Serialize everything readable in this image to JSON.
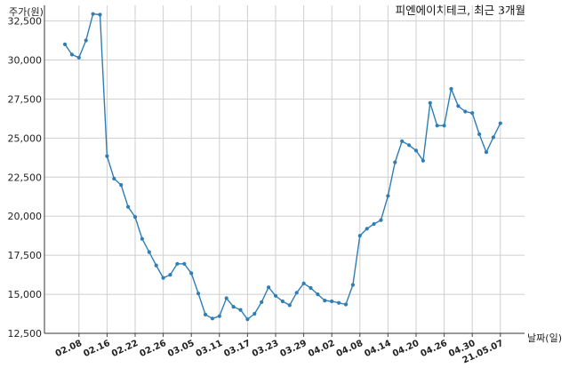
{
  "chart_data": {
    "type": "line",
    "title": "피엔에이치테크, 최근 3개월",
    "ylabel": "주가(원)",
    "xlabel": "날짜(일)",
    "ylim": [
      12500,
      33500
    ],
    "yticks": [
      12500,
      15000,
      17500,
      20000,
      22500,
      25000,
      27500,
      30000,
      32500
    ],
    "ytick_labels": [
      "12,500",
      "15,000",
      "17,500",
      "20,000",
      "22,500",
      "25,000",
      "27,500",
      "30,000",
      "32,500"
    ],
    "xticks": [
      {
        "index": 2,
        "label": "02.08"
      },
      {
        "index": 6,
        "label": "02.16"
      },
      {
        "index": 10,
        "label": "02.22"
      },
      {
        "index": 14,
        "label": "02.26"
      },
      {
        "index": 18,
        "label": "03.05"
      },
      {
        "index": 22,
        "label": "03.11"
      },
      {
        "index": 26,
        "label": "03.17"
      },
      {
        "index": 30,
        "label": "03.23"
      },
      {
        "index": 34,
        "label": "03.29"
      },
      {
        "index": 38,
        "label": "04.02"
      },
      {
        "index": 42,
        "label": "04.08"
      },
      {
        "index": 46,
        "label": "04.14"
      },
      {
        "index": 50,
        "label": "04.20"
      },
      {
        "index": 54,
        "label": "04.26"
      },
      {
        "index": 58,
        "label": "04.30"
      },
      {
        "index": 62,
        "label": "21.05.07"
      }
    ],
    "grid": true,
    "color": "#2e7db5",
    "series": [
      {
        "values": [
          31000,
          30350,
          30150,
          31250,
          32950,
          32900,
          23850,
          22400,
          22000,
          20600,
          19950,
          18550,
          17700,
          16850,
          16050,
          16250,
          16950,
          16950,
          16350,
          15050,
          13700,
          13450,
          13600,
          14750,
          14200,
          14000,
          13400,
          13750,
          14500,
          15450,
          14900,
          14550,
          14300,
          15100,
          15700,
          15400,
          15000,
          14600,
          14550,
          14450,
          14350,
          15600,
          18750,
          19200,
          19500,
          19750,
          21300,
          23450,
          24800,
          24550,
          24200,
          23550,
          27250,
          25800,
          25800,
          28150,
          27050,
          26700,
          26600,
          25250,
          24100,
          25050,
          25950
        ]
      }
    ]
  }
}
